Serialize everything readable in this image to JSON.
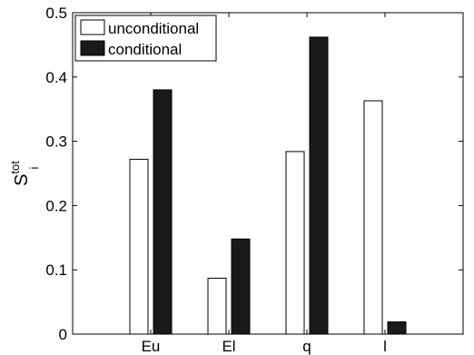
{
  "chart_data": {
    "type": "bar",
    "categories": [
      "Eu",
      "El",
      "q",
      "l"
    ],
    "series": [
      {
        "name": "unconditional",
        "values": [
          0.272,
          0.087,
          0.284,
          0.363
        ],
        "color": "#ffffff"
      },
      {
        "name": "conditional",
        "values": [
          0.38,
          0.148,
          0.462,
          0.019
        ],
        "color": "#1a1a1a"
      }
    ],
    "ylabel": {
      "base": "S",
      "sup": "tot",
      "sub": "i"
    },
    "xlabel": "",
    "title": "",
    "ylim": [
      0,
      0.5
    ],
    "yticks": [
      "0",
      "0.1",
      "0.2",
      "0.3",
      "0.4",
      "0.5"
    ],
    "ytick_values": [
      0,
      0.1,
      0.2,
      0.3,
      0.4,
      0.5
    ],
    "grid": false,
    "legend": "top-left"
  }
}
